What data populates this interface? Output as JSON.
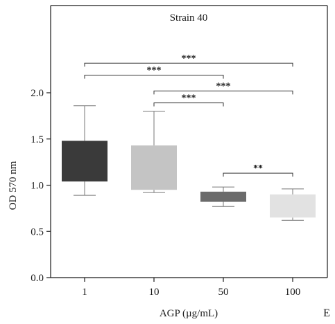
{
  "chart_data": {
    "type": "box",
    "title": "Strain 40",
    "xlabel": "AGP (µg/mL)",
    "ylabel": "OD 570 nm",
    "panel_label": "E",
    "categories": [
      "1",
      "10",
      "50",
      "100"
    ],
    "ylim": [
      0.0,
      2.0
    ],
    "yticks": [
      "0.0",
      "0.5",
      "1.0",
      "1.5",
      "2.0"
    ],
    "grid": false,
    "boxes": [
      {
        "category": "1",
        "min": 0.89,
        "q1": 1.04,
        "q3": 1.48,
        "max": 1.86,
        "color": "#3a3a3a"
      },
      {
        "category": "10",
        "min": 0.92,
        "q1": 0.95,
        "q3": 1.43,
        "max": 1.8,
        "color": "#c4c4c4"
      },
      {
        "category": "50",
        "min": 0.77,
        "q1": 0.82,
        "q3": 0.93,
        "max": 0.98,
        "color": "#6b6b6b"
      },
      {
        "category": "100",
        "min": 0.62,
        "q1": 0.65,
        "q3": 0.9,
        "max": 0.96,
        "color": "#e2e2e2"
      }
    ],
    "significance": [
      {
        "from": "1",
        "to": "100",
        "label": "***",
        "level": 2.32
      },
      {
        "from": "1",
        "to": "50",
        "label": "***",
        "level": 2.19
      },
      {
        "from": "10",
        "to": "100",
        "label": "***",
        "level": 2.02
      },
      {
        "from": "10",
        "to": "50",
        "label": "***",
        "level": 1.89
      },
      {
        "from": "50",
        "to": "100",
        "label": "**",
        "level": 1.13
      }
    ]
  }
}
